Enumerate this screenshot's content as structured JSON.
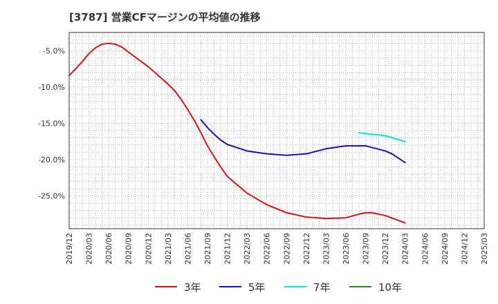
{
  "title": "[3787]  営業CFマージンの平均値の推移",
  "chart_data": {
    "type": "line",
    "title": "[3787]  営業CFマージンの平均値の推移",
    "xlabel": "",
    "ylabel": "",
    "x": [
      "2019/12",
      "2020/03",
      "2020/06",
      "2020/09",
      "2020/12",
      "2021/03",
      "2021/06",
      "2021/09",
      "2021/12",
      "2022/03",
      "2022/06",
      "2022/09",
      "2022/12",
      "2023/03",
      "2023/06",
      "2023/09",
      "2023/12",
      "2024/03",
      "2024/06",
      "2024/09",
      "2024/12",
      "2025/03"
    ],
    "y_ticks": [
      -5,
      -10,
      -15,
      -20,
      -25
    ],
    "y_tick_labels": [
      "-5.0%",
      "-10.0%",
      "-15.0%",
      "-20.0%",
      "-25.0%"
    ],
    "ylim": [
      -29.5,
      -2.5
    ],
    "grid": true,
    "legend_position": "bottom",
    "series": [
      {
        "name": "3年",
        "color": "#dd1111",
        "points": [
          [
            "2019/12",
            -8.4
          ],
          [
            "2020/01",
            -7.5
          ],
          [
            "2020/02",
            -6.5
          ],
          [
            "2020/03",
            -5.4
          ],
          [
            "2020/04",
            -4.6
          ],
          [
            "2020/05",
            -4.1
          ],
          [
            "2020/06",
            -4.0
          ],
          [
            "2020/07",
            -4.1
          ],
          [
            "2020/08",
            -4.5
          ],
          [
            "2020/09",
            -5.2
          ],
          [
            "2020/12",
            -7.2
          ],
          [
            "2021/03",
            -9.6
          ],
          [
            "2021/04",
            -10.5
          ],
          [
            "2021/05",
            -11.7
          ],
          [
            "2021/06",
            -13.1
          ],
          [
            "2021/07",
            -14.6
          ],
          [
            "2021/08",
            -16.3
          ],
          [
            "2021/09",
            -18.1
          ],
          [
            "2021/10",
            -19.6
          ],
          [
            "2021/11",
            -21.0
          ],
          [
            "2021/12",
            -22.3
          ],
          [
            "2022/03",
            -24.6
          ],
          [
            "2022/06",
            -26.2
          ],
          [
            "2022/09",
            -27.3
          ],
          [
            "2022/12",
            -27.9
          ],
          [
            "2023/03",
            -28.1
          ],
          [
            "2023/06",
            -28.0
          ],
          [
            "2023/08",
            -27.5
          ],
          [
            "2023/09",
            -27.3
          ],
          [
            "2023/10",
            -27.3
          ],
          [
            "2023/12",
            -27.7
          ],
          [
            "2024/03",
            -28.7
          ]
        ]
      },
      {
        "name": "5年",
        "color": "#1111cc",
        "points": [
          [
            "2021/08",
            -14.5
          ],
          [
            "2021/09",
            -15.6
          ],
          [
            "2021/10",
            -16.5
          ],
          [
            "2021/11",
            -17.3
          ],
          [
            "2021/12",
            -17.9
          ],
          [
            "2022/03",
            -18.8
          ],
          [
            "2022/06",
            -19.2
          ],
          [
            "2022/09",
            -19.4
          ],
          [
            "2022/12",
            -19.2
          ],
          [
            "2023/03",
            -18.5
          ],
          [
            "2023/06",
            -18.1
          ],
          [
            "2023/09",
            -18.1
          ],
          [
            "2023/12",
            -18.8
          ],
          [
            "2024/01",
            -19.2
          ],
          [
            "2024/02",
            -19.8
          ],
          [
            "2024/03",
            -20.4
          ]
        ]
      },
      {
        "name": "7年",
        "color": "#00e5ee",
        "points": [
          [
            "2023/08",
            -16.3
          ],
          [
            "2023/09",
            -16.4
          ],
          [
            "2023/12",
            -16.7
          ],
          [
            "2024/03",
            -17.5
          ]
        ]
      },
      {
        "name": "10年",
        "color": "#228822",
        "points": []
      }
    ]
  }
}
